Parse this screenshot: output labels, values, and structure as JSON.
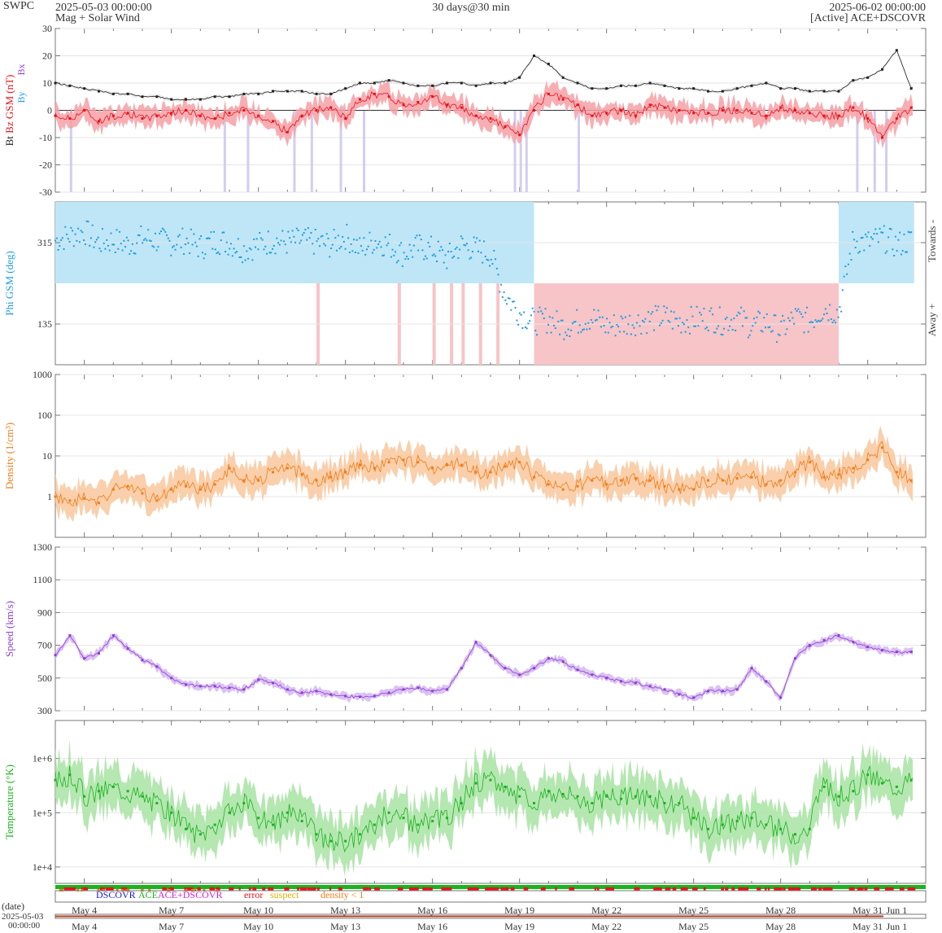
{
  "header": {
    "org": "SWPC",
    "start_time": "2025-05-03 00:00:00",
    "product": "Mag + Solar Wind",
    "span": "30 days@30 min",
    "end_time": "2025-06-02 00:00:00",
    "source": "[Active] ACE+DSCOVR"
  },
  "colors": {
    "bt": "#222222",
    "bz": "#e8121b",
    "bz_band": "#f6a0a6",
    "by_bx_neg": "#c9c0ec",
    "phi": "#1e9ee0",
    "phi_towards": "#bfe6f7",
    "phi_away": "#f7c4c8",
    "density": "#f07d18",
    "density_band": "#f9c79c",
    "speed": "#8e3fd1",
    "speed_band": "#d5b6f2",
    "temperature": "#1bb31e",
    "temperature_band": "#a8e3a3",
    "frame": "#777777",
    "grid": "#e6e6e6"
  },
  "chart_data": [
    {
      "id": "mag",
      "type": "line",
      "ylabel_parts": [
        {
          "text": "Bt",
          "color": "#222222"
        },
        {
          "text": "Bz GSM (nT)",
          "color": "#e8121b"
        }
      ],
      "legend_glyphs": [
        {
          "text": "Bx",
          "color": "#8e3fd1"
        },
        {
          "text": "By",
          "color": "#1e9ee0"
        }
      ],
      "ylim": [
        -30,
        30
      ],
      "yticks": [
        -30,
        -20,
        -10,
        0,
        10,
        20,
        30
      ],
      "x_unit": "days since 2025-05-03 00:00",
      "series": [
        {
          "name": "Bt",
          "x": [
            0,
            0.5,
            1,
            1.5,
            2,
            2.5,
            3,
            3.5,
            4,
            4.5,
            5,
            5.5,
            6,
            6.5,
            7,
            7.5,
            8,
            8.5,
            9,
            9.5,
            10,
            10.5,
            11,
            11.5,
            12,
            12.5,
            13,
            13.5,
            14,
            14.5,
            15,
            15.5,
            16,
            16.5,
            17,
            17.5,
            18,
            18.5,
            19,
            19.5,
            20,
            20.5,
            21,
            21.5,
            22,
            22.5,
            23,
            23.5,
            24,
            24.5,
            25,
            25.5,
            26,
            26.5,
            27,
            27.5,
            28,
            28.5,
            29,
            29.5
          ],
          "values": [
            10,
            9,
            8,
            7,
            6,
            6,
            5,
            5,
            4,
            4,
            4,
            5,
            5,
            6,
            6,
            7,
            7,
            7,
            6,
            6,
            8,
            10,
            10,
            11,
            10,
            9,
            9,
            10,
            10,
            9,
            10,
            10,
            12,
            20,
            17,
            12,
            10,
            8,
            8,
            9,
            9,
            10,
            9,
            8,
            8,
            7,
            7,
            8,
            9,
            10,
            8,
            8,
            7,
            7,
            7,
            11,
            12,
            15,
            22,
            8
          ]
        },
        {
          "name": "Bz GSM",
          "x": [
            0,
            0.5,
            1,
            1.5,
            2,
            2.5,
            3,
            3.5,
            4,
            4.5,
            5,
            5.5,
            6,
            6.5,
            7,
            7.5,
            8,
            8.5,
            9,
            9.5,
            10,
            10.5,
            11,
            11.5,
            12,
            12.5,
            13,
            13.5,
            14,
            14.5,
            15,
            15.5,
            16,
            16.5,
            17,
            17.5,
            18,
            18.5,
            19,
            19.5,
            20,
            20.5,
            21,
            21.5,
            22,
            22.5,
            23,
            23.5,
            24,
            24.5,
            25,
            25.5,
            26,
            26.5,
            27,
            27.5,
            28,
            28.5,
            29,
            29.5
          ],
          "values": [
            -2,
            -3,
            0,
            -4,
            -2,
            -1,
            -3,
            -2,
            -1,
            0,
            -2,
            -3,
            -1,
            0,
            -2,
            -4,
            -8,
            -2,
            0,
            1,
            -3,
            4,
            6,
            5,
            2,
            3,
            5,
            2,
            1,
            -2,
            -3,
            -6,
            -9,
            0,
            6,
            4,
            2,
            -2,
            -1,
            0,
            -2,
            2,
            1,
            0,
            -1,
            -1,
            0,
            0,
            -1,
            -2,
            1,
            0,
            -1,
            -2,
            -2,
            1,
            -3,
            -10,
            -3,
            1
          ]
        }
      ]
    },
    {
      "id": "phi",
      "type": "scatter",
      "ylabel": "Phi GSM (deg)",
      "ylim": [
        45,
        405
      ],
      "yticks": [
        135,
        315
      ],
      "right_labels": [
        "Towards -",
        "Away +"
      ],
      "x_unit": "days since 2025-05-03 00:00",
      "series": [
        {
          "name": "Phi GSM",
          "x": [
            0,
            0.5,
            1,
            1.5,
            2,
            2.5,
            3,
            3.5,
            4,
            4.5,
            5,
            5.5,
            6,
            6.5,
            7,
            7.5,
            8,
            8.5,
            9,
            9.5,
            10,
            10.5,
            11,
            11.5,
            12,
            12.5,
            13,
            13.5,
            14,
            14.5,
            15,
            15.5,
            16,
            16.5,
            17,
            17.5,
            18,
            18.5,
            19,
            19.5,
            20,
            20.5,
            21,
            21.5,
            22,
            22.5,
            23,
            23.5,
            24,
            24.5,
            25,
            25.5,
            26,
            26.5,
            27,
            27.5,
            28,
            28.5,
            29,
            29.5
          ],
          "values": [
            320,
            330,
            340,
            315,
            320,
            310,
            325,
            320,
            315,
            320,
            305,
            320,
            315,
            300,
            310,
            320,
            315,
            320,
            315,
            310,
            330,
            300,
            320,
            310,
            290,
            305,
            300,
            280,
            310,
            300,
            290,
            200,
            160,
            140,
            145,
            130,
            140,
            150,
            130,
            135,
            140,
            145,
            150,
            140,
            145,
            150,
            140,
            150,
            130,
            140,
            120,
            150,
            140,
            170,
            160,
            320,
            315,
            325,
            310,
            320
          ]
        }
      ]
    },
    {
      "id": "density",
      "type": "line",
      "ylabel": "Density (1/cm³)",
      "yscale": "log",
      "ylim": [
        0.1,
        1000
      ],
      "yticks": [
        1,
        10,
        100,
        1000
      ],
      "x_unit": "days since 2025-05-03 00:00",
      "series": [
        {
          "name": "Density",
          "x": [
            0,
            0.5,
            1,
            1.5,
            2,
            2.5,
            3,
            3.5,
            4,
            4.5,
            5,
            5.5,
            6,
            6.5,
            7,
            7.5,
            8,
            8.5,
            9,
            9.5,
            10,
            10.5,
            11,
            11.5,
            12,
            12.5,
            13,
            13.5,
            14,
            14.5,
            15,
            15.5,
            16,
            16.5,
            17,
            17.5,
            18,
            18.5,
            19,
            19.5,
            20,
            20.5,
            21,
            21.5,
            22,
            22.5,
            23,
            23.5,
            24,
            24.5,
            25,
            25.5,
            26,
            26.5,
            27,
            27.5,
            28,
            28.5,
            29,
            29.5
          ],
          "values": [
            1,
            0.8,
            0.9,
            0.7,
            1.5,
            1.8,
            1.2,
            0.8,
            1.5,
            1.8,
            1.5,
            2.0,
            5.0,
            2.5,
            2.5,
            4.0,
            5.0,
            3.5,
            2.5,
            3.0,
            4.0,
            6.0,
            5.0,
            7.0,
            8.0,
            7.0,
            5.0,
            6.0,
            6.0,
            4.0,
            4.0,
            5.5,
            7.0,
            3.0,
            2.0,
            1.5,
            1.8,
            2.5,
            2.0,
            2.5,
            2.8,
            2.5,
            1.8,
            1.5,
            1.5,
            2.5,
            2.5,
            2.8,
            3.0,
            2.0,
            2.5,
            4.0,
            7.0,
            3.0,
            3.5,
            5.0,
            8.0,
            16.0,
            4.0,
            2.5
          ]
        }
      ]
    },
    {
      "id": "speed",
      "type": "line",
      "ylabel": "Speed (km/s)",
      "ylim": [
        300,
        1300
      ],
      "yticks": [
        300,
        500,
        700,
        900,
        1100,
        1300
      ],
      "x_unit": "days since 2025-05-03 00:00",
      "series": [
        {
          "name": "Speed",
          "x": [
            0,
            0.5,
            1,
            1.5,
            2,
            2.5,
            3,
            3.5,
            4,
            4.5,
            5,
            5.5,
            6,
            6.5,
            7,
            7.5,
            8,
            8.5,
            9,
            9.5,
            10,
            10.5,
            11,
            11.5,
            12,
            12.5,
            13,
            13.5,
            14,
            14.5,
            15,
            15.5,
            16,
            16.5,
            17,
            17.5,
            18,
            18.5,
            19,
            19.5,
            20,
            20.5,
            21,
            21.5,
            22,
            22.5,
            23,
            23.5,
            24,
            24.5,
            25,
            25.5,
            26,
            26.5,
            27,
            27.5,
            28,
            28.5,
            29,
            29.5
          ],
          "values": [
            640,
            760,
            620,
            650,
            760,
            680,
            610,
            570,
            500,
            460,
            450,
            450,
            440,
            430,
            490,
            470,
            430,
            410,
            420,
            400,
            390,
            385,
            390,
            410,
            430,
            440,
            420,
            430,
            560,
            720,
            640,
            560,
            520,
            560,
            620,
            600,
            550,
            520,
            500,
            480,
            470,
            450,
            430,
            400,
            380,
            420,
            420,
            430,
            560,
            480,
            380,
            620,
            700,
            730,
            760,
            720,
            690,
            670,
            660,
            660
          ]
        }
      ]
    },
    {
      "id": "temperature",
      "type": "line",
      "ylabel": "Temperature (°K)",
      "yscale": "log",
      "ylim": [
        5000,
        5000000
      ],
      "yticks": [
        10000,
        100000,
        1000000
      ],
      "ytick_labels": [
        "1e+4",
        "1e+5",
        "1e+6"
      ],
      "x_unit": "days since 2025-05-03 00:00",
      "series": [
        {
          "name": "Temperature",
          "x": [
            0,
            0.5,
            1,
            1.5,
            2,
            2.5,
            3,
            3.5,
            4,
            4.5,
            5,
            5.5,
            6,
            6.5,
            7,
            7.5,
            8,
            8.5,
            9,
            9.5,
            10,
            10.5,
            11,
            11.5,
            12,
            12.5,
            13,
            13.5,
            14,
            14.5,
            15,
            15.5,
            16,
            16.5,
            17,
            17.5,
            18,
            18.5,
            19,
            19.5,
            20,
            20.5,
            21,
            21.5,
            22,
            22.5,
            23,
            23.5,
            24,
            24.5,
            25,
            25.5,
            26,
            26.5,
            27,
            27.5,
            28,
            28.5,
            29,
            29.5
          ],
          "values": [
            400000,
            500000,
            200000,
            250000,
            300000,
            250000,
            200000,
            150000,
            100000,
            50000,
            40000,
            60000,
            100000,
            150000,
            80000,
            60000,
            100000,
            70000,
            40000,
            30000,
            30000,
            40000,
            60000,
            100000,
            80000,
            60000,
            70000,
            80000,
            150000,
            350000,
            400000,
            300000,
            200000,
            150000,
            250000,
            220000,
            200000,
            150000,
            200000,
            180000,
            200000,
            200000,
            150000,
            150000,
            80000,
            50000,
            60000,
            70000,
            80000,
            60000,
            50000,
            40000,
            50000,
            300000,
            200000,
            250000,
            500000,
            350000,
            300000,
            400000
          ]
        }
      ]
    },
    {
      "id": "status",
      "type": "table",
      "legend": [
        {
          "label": "DSCOVR",
          "color": "#1a1adb"
        },
        {
          "label": "ACE",
          "color": "#1bb31e"
        },
        {
          "label": "ACE+DSCOVR",
          "color": "#d41fd4"
        },
        {
          "label": "error",
          "color": "#e8121b"
        },
        {
          "label": "suspect",
          "color": "#d8b000"
        },
        {
          "label": "density < 1",
          "color": "#f07d18"
        }
      ]
    }
  ],
  "x_axis": {
    "tick_labels": [
      "May 4",
      "May 7",
      "May 10",
      "May 13",
      "May 16",
      "May 19",
      "May 22",
      "May 25",
      "May 28",
      "May 31",
      "Jun 1"
    ],
    "tick_days": [
      1,
      4,
      7,
      10,
      13,
      16,
      19,
      22,
      25,
      28,
      29
    ],
    "date_label": "(date)",
    "date_origin": "2025-05-03",
    "date_origin_time": "00:00:00"
  }
}
